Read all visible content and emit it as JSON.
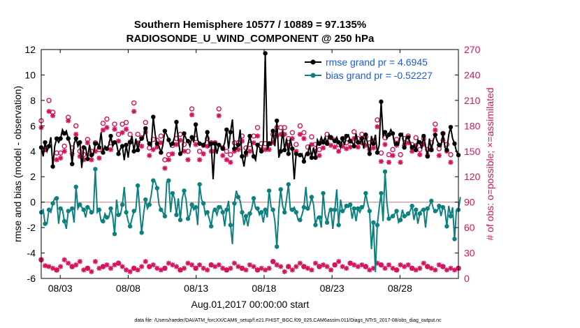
{
  "chart_data": {
    "type": "line",
    "title_line1": "Southern Hemisphere 10577 / 10889 = 97.135%",
    "title_line2": "RADIOSONDE_U_WIND_COMPONENT @ 250 hPa",
    "ylabel_left": "rmse and bias (model - observation)",
    "ylabel_right": "# of obs: o=possible; ×=assimilated",
    "xlabel": "Aug.01,2017 00:00:00 start",
    "footnote": "data file: /Users/raeder/DAI/ATM_forcXX/CAM6_setup/f.e21.FHIST_BGC.f09_025.CAM6assim.011/Diags_NTrS_2017-08/obs_diag_output.nc",
    "x_range": [
      1.6,
      32.3
    ],
    "ylim_left": [
      -6,
      12
    ],
    "ylim_right": [
      0,
      270
    ],
    "yticks_left": [
      "-6",
      "-4",
      "-2",
      "0",
      "2",
      "4",
      "6",
      "8",
      "10",
      "12"
    ],
    "yticks_right": [
      "0",
      "30",
      "60",
      "90",
      "120",
      "150",
      "180",
      "210",
      "240",
      "270"
    ],
    "xticks": [
      {
        "day": 3,
        "label": "08/03"
      },
      {
        "day": 8,
        "label": "08/08"
      },
      {
        "day": 13,
        "label": "08/13"
      },
      {
        "day": 18,
        "label": "08/18"
      },
      {
        "day": 23,
        "label": "08/23"
      },
      {
        "day": 28,
        "label": "08/28"
      }
    ],
    "legend": {
      "position": "top-right",
      "entries": [
        "rmse grand pr = 4.6945",
        "bias grand pr = -0.52227"
      ]
    },
    "colors": {
      "rmse": "#000000",
      "bias": "#0d8080",
      "obs": "#d6125b",
      "legend_text": "#1a5cd6",
      "zero_line": "#c8a8a8"
    },
    "series": [
      {
        "name": "rmse",
        "values": [
          4.3,
          3.6,
          4.7,
          4.0,
          4.4,
          5.1,
          2.8,
          4.4,
          5.0,
          4.7,
          5.0,
          5.7,
          5.4,
          5.6,
          5.0,
          4.5,
          3.0,
          4.6,
          5.0,
          4.4,
          4.7,
          2.7,
          4.3,
          4.3,
          3.4,
          4.5,
          3.7,
          3.7,
          4.6,
          4.7,
          4.3,
          5.5,
          3.9,
          4.4,
          4.2,
          4.5,
          5.2,
          4.4,
          4.7,
          4.6,
          3.8,
          4.2,
          4.4,
          3.3,
          4.5,
          3.5,
          4.7,
          5.2,
          4.0,
          5.0,
          4.1,
          4.8,
          5.0,
          5.2,
          5.8,
          4.8,
          4.6,
          4.4,
          6.7,
          5.3,
          4.6,
          4.4,
          3.9,
          4.5,
          5.6,
          5.3,
          4.9,
          4.4,
          4.6,
          5.1,
          6.3,
          4.9,
          3.8,
          4.0,
          5.4,
          5.0,
          4.8,
          4.4,
          5.1,
          4.7,
          6.1,
          4.9,
          4.6,
          4.6,
          4.5,
          4.7,
          5.5,
          4.4,
          4.6,
          1.8,
          4.6,
          3.8,
          4.5,
          4.4,
          4.2,
          4.7,
          5.7,
          4.2,
          5.5,
          6.5,
          4.2,
          4.2,
          4.5,
          5.7,
          3.6,
          2.8,
          3.9,
          4.5,
          5.2,
          4.5,
          3.6,
          3.3,
          4.5,
          4.3,
          4.0,
          4.7,
          11.7,
          4.1,
          4.6,
          4.5,
          5.6,
          4.4,
          6.4,
          3.5,
          4.0,
          5.7,
          4.1,
          5.0,
          3.8,
          5.0,
          4.2,
          1.8,
          3.8,
          3.7,
          3.7,
          3.8,
          3.2,
          3.8,
          3.8,
          4.5,
          3.5,
          4.3,
          3.5,
          4.9,
          4.6,
          5.1,
          4.7,
          5.1,
          4.6,
          5.3,
          5.1,
          4.9,
          4.8,
          5.1,
          4.7,
          4.3,
          5.0,
          4.5,
          5.2,
          5.3,
          4.8,
          4.7,
          4.4,
          5.4,
          4.7,
          4.6,
          5.0,
          4.2,
          5.3,
          4.6,
          3.8,
          5.2,
          4.6,
          5.3,
          3.9,
          4.5,
          7.9,
          5.2,
          5.5,
          5.0,
          5.3,
          5.7,
          5.4,
          4.5,
          4.6,
          4.5,
          5.3,
          5.4,
          4.3,
          5.1,
          5.1,
          4.7,
          4.3,
          4.5,
          4.1,
          4.9,
          4.7,
          4.2,
          5.2,
          4.4,
          3.6,
          5.0,
          4.1,
          4.9,
          5.3,
          4.8,
          4.5,
          4.4,
          5.4,
          4.3,
          4.1,
          5.3,
          5.9,
          5.0,
          4.6,
          4.0,
          3.7
        ]
      },
      {
        "name": "bias",
        "values": [
          -0.8,
          -0.6,
          -1.7,
          -1.7,
          -0.6,
          -0.8,
          -0.1,
          0.3,
          0.3,
          -1.7,
          -0.5,
          -0.6,
          -1.5,
          -2.1,
          -0.7,
          -0.7,
          -0.5,
          -1.6,
          1.2,
          -0.5,
          -0.2,
          -0.4,
          -0.6,
          -1.2,
          -0.4,
          -0.5,
          -0.8,
          -0.8,
          2.6,
          -0.8,
          -0.6,
          -1.5,
          -1.5,
          -0.9,
          -1.2,
          -1.2,
          -0.5,
          -1.1,
          -2.5,
          0.2,
          -1.0,
          -1.0,
          -0.2,
          1.2,
          -0.8,
          -1.5,
          -1.9,
          -1.3,
          -0.7,
          -0.6,
          1.3,
          -0.6,
          -2.4,
          -0.9,
          0.2,
          -0.5,
          -0.2,
          0.6,
          1.7,
          1.6,
          1.1,
          -0.2,
          -0.6,
          -0.8,
          -1.1,
          1.6,
          1.7,
          -0.8,
          0.7,
          0.3,
          -1.0,
          0.3,
          -1.4,
          0.3,
          0.9,
          0.2,
          -1.3,
          -1.0,
          -0.2,
          -0.6,
          -0.4,
          -1.8,
          1.4,
          0.2,
          -0.1,
          -1.0,
          -0.8,
          -1.3,
          -1.9,
          -0.7,
          -0.6,
          -1.0,
          -0.4,
          -0.3,
          -0.8,
          -1.9,
          -0.6,
          0.1,
          -1.8,
          -3.3,
          -0.1,
          0.9,
          0.4,
          0.1,
          -0.8,
          -1.8,
          -1.1,
          -1.9,
          -0.9,
          -0.5,
          0.3,
          -0.5,
          -0.5,
          -1.0,
          -0.8,
          -1.6,
          -0.6,
          -1.2,
          0.9,
          -0.4,
          -0.6,
          -1.5,
          -3.5,
          -0.6,
          1.0,
          -0.3,
          -0.8,
          0.2,
          1.4,
          -0.6,
          -0.6,
          -0.4,
          -0.8,
          -1.4,
          -1.4,
          -1.0,
          -0.4,
          1.2,
          -0.5,
          -0.3,
          0.4,
          -0.2,
          -1.8,
          -1.2,
          -1.2,
          -2.0,
          0.7,
          -1.0,
          -1.6,
          -0.8,
          -0.6,
          -2.1,
          -0.6,
          1.0,
          -1.8,
          0.2,
          -0.7,
          -0.6,
          -0.3,
          -0.4,
          -0.2,
          -1.3,
          -0.5,
          -1.5,
          -0.5,
          -0.8,
          -0.4,
          -0.3,
          0.7,
          -0.1,
          -0.7,
          -3.7,
          -1.6,
          -5.5,
          -1.8,
          -0.4,
          0.7,
          -1.5,
          2.4,
          -0.1,
          -1.3,
          -1.2,
          -1.1,
          -0.9,
          -0.7,
          -1.6,
          -1.4,
          -0.6,
          -1.1,
          -1.1,
          -0.9,
          -0.7,
          -0.3,
          -1.4,
          -0.6,
          -1.7,
          -0.9,
          -0.6,
          -0.6,
          -2.0,
          -0.5,
          -0.3,
          0.1,
          -0.5,
          -0.7,
          -0.7,
          -0.3,
          -1.1,
          -0.4,
          -0.6,
          -1.9,
          -0.3,
          -1.1,
          -0.4,
          -2.9,
          -0.6,
          -0.6,
          0.4
        ]
      }
    ],
    "obs_possible": [
      186,
      190,
      152,
      155,
      210,
      208,
      196,
      155,
      148,
      175,
      148,
      172,
      156,
      204,
      190,
      145,
      154,
      160,
      180,
      158,
      150,
      162,
      146,
      160,
      164,
      142,
      150,
      152,
      160,
      185,
      152,
      190,
      183,
      137,
      188,
      162,
      160,
      145,
      182,
      154,
      170,
      170,
      182,
      152,
      184,
      150,
      170,
      218,
      207,
      178,
      170,
      172,
      166,
      158,
      184,
      150,
      154,
      180,
      164,
      167,
      163,
      171,
      168,
      172,
      140,
      160,
      146,
      154,
      157,
      160,
      165,
      130,
      170,
      168,
      158,
      165,
      150,
      210,
      200,
      162,
      165,
      180,
      150,
      160,
      157,
      150,
      165,
      176,
      160,
      151,
      160,
      170,
      200,
      163,
      154,
      170,
      150,
      160,
      146,
      158,
      160,
      190,
      160,
      180,
      168,
      184,
      154,
      160,
      158,
      165,
      168,
      152,
      178,
      162,
      159,
      175,
      159,
      155,
      159,
      172,
      170,
      155,
      178,
      150,
      178,
      159,
      178,
      165,
      165,
      161,
      172,
      165,
      158,
      162,
      180,
      154,
      172,
      168,
      155,
      160,
      167,
      145,
      158,
      154,
      152,
      156,
      161,
      152,
      170,
      167,
      166,
      159,
      163,
      170,
      158,
      157,
      165,
      140,
      160,
      150,
      162,
      165,
      173,
      175,
      165,
      158,
      170,
      170,
      167,
      159,
      160,
      146,
      162,
      169,
      187,
      165,
      148,
      153,
      166,
      159,
      146,
      151,
      152,
      170,
      164,
      176,
      146,
      150,
      165,
      175,
      168,
      151,
      158,
      162,
      166,
      158,
      152,
      171,
      165,
      170,
      152,
      152,
      160,
      170,
      182,
      163,
      153,
      162,
      171,
      182,
      158,
      152,
      146,
      183
    ],
    "obs_assimilated": [
      178,
      165,
      152,
      150,
      197,
      185,
      192,
      153,
      140,
      162,
      142,
      165,
      150,
      198,
      186,
      140,
      147,
      156,
      170,
      150,
      144,
      151,
      140,
      150,
      160,
      130,
      140,
      146,
      150,
      177,
      142,
      181,
      175,
      132,
      178,
      150,
      152,
      138,
      176,
      145,
      162,
      160,
      172,
      146,
      176,
      140,
      161,
      206,
      197,
      170,
      160,
      162,
      156,
      150,
      173,
      140,
      145,
      170,
      152,
      153,
      155,
      164,
      160,
      159,
      130,
      150,
      140,
      146,
      147,
      150,
      158,
      123,
      163,
      160,
      150,
      154,
      140,
      200,
      193,
      152,
      158,
      172,
      140,
      151,
      147,
      140,
      156,
      168,
      150,
      146,
      150,
      160,
      192,
      155,
      145,
      162,
      140,
      152,
      137,
      150,
      150,
      182,
      152,
      172,
      162,
      174,
      146,
      150,
      150,
      156,
      160,
      145,
      168,
      153,
      152,
      165,
      152,
      147,
      152,
      164,
      160,
      146,
      168,
      142,
      170,
      150,
      170,
      156,
      157,
      154,
      165,
      156,
      150,
      155,
      170,
      146,
      165,
      160,
      147,
      152,
      158,
      135,
      150,
      145,
      145,
      148,
      154,
      145,
      160,
      158,
      157,
      150,
      155,
      160,
      150,
      150,
      156,
      130,
      153,
      142,
      155,
      156,
      165,
      167,
      155,
      150,
      160,
      162,
      157,
      150,
      152,
      137,
      154,
      160,
      179,
      157,
      138,
      145,
      158,
      152,
      137,
      144,
      145,
      162,
      157,
      168,
      137,
      141,
      157,
      167,
      160,
      142,
      150,
      154,
      157,
      150,
      146,
      162,
      158,
      162,
      145,
      143,
      152,
      162,
      175,
      155,
      145,
      153,
      163,
      174,
      150,
      143,
      137,
      172
    ],
    "obs_possible_low": [
      22,
      16,
      15,
      24,
      14,
      28,
      12,
      18,
      10,
      20,
      14,
      16,
      22,
      12,
      18,
      10,
      14,
      8,
      16,
      12,
      20,
      14,
      10,
      18,
      12,
      16,
      8,
      14,
      20,
      10,
      12,
      18,
      14,
      8,
      16,
      22,
      12,
      14,
      16,
      10,
      18,
      12,
      14,
      20,
      10,
      16,
      8,
      14,
      12,
      18,
      10,
      16,
      14,
      12,
      20,
      10,
      14,
      12,
      16,
      18,
      12,
      14,
      10,
      16,
      12,
      14,
      18,
      10,
      16,
      12,
      14,
      20,
      10,
      16,
      12,
      14,
      18,
      8,
      16,
      14,
      12,
      10,
      16,
      14,
      12,
      18,
      10,
      14,
      16,
      12,
      14,
      10,
      16,
      18,
      12,
      14,
      10,
      16,
      12,
      14,
      18,
      10,
      14,
      16,
      12,
      20,
      10,
      14,
      16,
      12,
      14,
      18,
      10,
      16,
      12,
      14,
      10,
      16,
      12,
      14,
      20,
      10,
      16,
      12,
      14,
      18,
      8,
      16,
      14,
      12,
      10,
      16,
      14,
      12,
      18,
      10,
      14,
      16,
      12,
      14,
      10,
      16,
      18,
      12,
      14,
      10,
      16,
      12,
      14,
      18,
      10,
      14,
      16,
      12,
      20,
      10,
      14,
      16,
      12,
      14,
      18,
      10,
      16,
      12,
      14,
      10,
      16,
      12,
      14,
      20,
      10,
      16,
      12,
      14,
      18,
      8,
      16,
      14,
      12,
      10,
      16,
      14,
      12,
      18,
      10,
      14,
      16,
      12,
      14,
      10,
      16,
      18,
      12,
      14,
      10,
      16,
      12,
      14,
      18,
      10,
      14,
      16,
      12,
      20,
      10,
      14,
      16,
      12,
      14,
      18,
      10,
      16,
      12,
      14,
      10,
      6,
      12,
      0
    ]
  }
}
